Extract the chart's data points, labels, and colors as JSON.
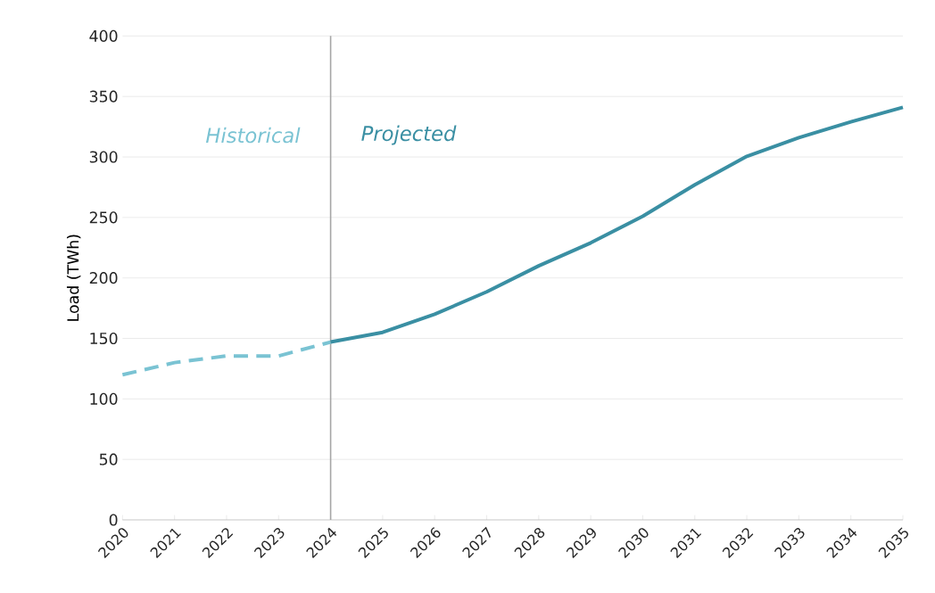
{
  "chart_data": {
    "type": "line",
    "ylabel": "Load (TWh)",
    "x": [
      2020,
      2021,
      2022,
      2023,
      2024,
      2025,
      2026,
      2027,
      2028,
      2029,
      2030,
      2031,
      2032,
      2033,
      2034,
      2035
    ],
    "series": [
      {
        "name": "Historical",
        "color": "#7ac3d3",
        "line_style": "dashed",
        "values": [
          120,
          130,
          135.5,
          135.5,
          147,
          null,
          null,
          null,
          null,
          null,
          null,
          null,
          null,
          null,
          null,
          null
        ]
      },
      {
        "name": "Projected",
        "color": "#3a8fa3",
        "line_style": "solid",
        "values": [
          null,
          null,
          null,
          null,
          147,
          155,
          170,
          188.5,
          210,
          229,
          251,
          277,
          300.5,
          316,
          329,
          341
        ]
      }
    ],
    "xlim": [
      2020,
      2035
    ],
    "xticks": [
      2020,
      2021,
      2022,
      2023,
      2024,
      2025,
      2026,
      2027,
      2028,
      2029,
      2030,
      2031,
      2032,
      2033,
      2034,
      2035
    ],
    "ylim": [
      0,
      400
    ],
    "yticks": [
      0,
      50,
      100,
      150,
      200,
      250,
      300,
      350,
      400
    ],
    "grid": "y",
    "ref_lines": [
      {
        "axis": "x",
        "value": 2024,
        "color": "#a6a6a6"
      }
    ]
  }
}
